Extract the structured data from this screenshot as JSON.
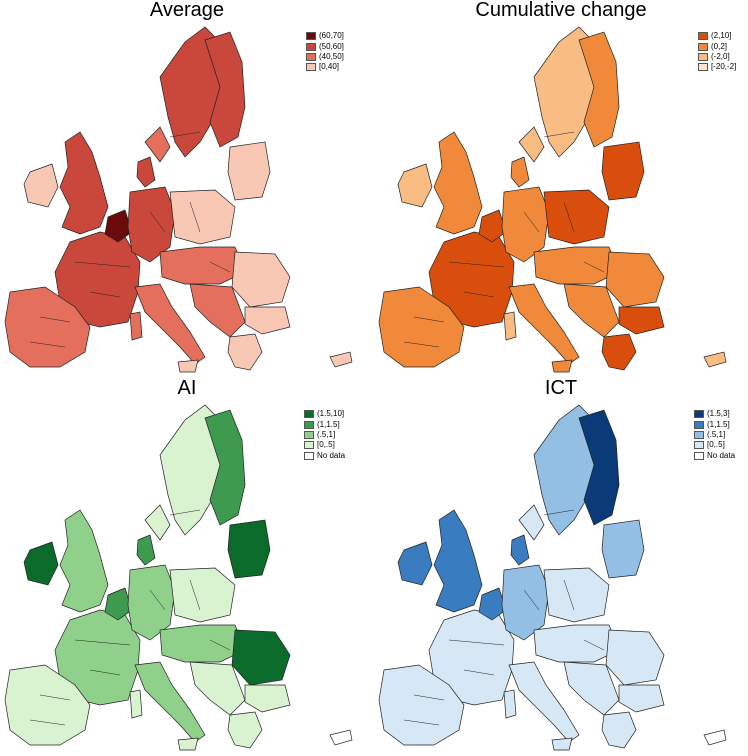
{
  "panels": [
    {
      "title": "Average",
      "legend": [
        {
          "label": "(60,70]",
          "color": "#6b0a0a"
        },
        {
          "label": "(50,60]",
          "color": "#c9473b"
        },
        {
          "label": "(40,50]",
          "color": "#e46f5d"
        },
        {
          "label": "[0,40]",
          "color": "#f8c8b5"
        }
      ],
      "base_color": "#c9473b"
    },
    {
      "title": "Cumulative change",
      "legend": [
        {
          "label": "(2,10]",
          "color": "#d94e0d"
        },
        {
          "label": "(0,2]",
          "color": "#f08a3a"
        },
        {
          "label": "(-2,0]",
          "color": "#f9bd84"
        },
        {
          "label": "[-20,-2]",
          "color": "#fde6d0"
        }
      ],
      "base_color": "#f08a3a"
    },
    {
      "title": "AI",
      "legend": [
        {
          "label": "(1.5,10]",
          "color": "#0b6b2b"
        },
        {
          "label": "(1,1.5]",
          "color": "#3d9a4f"
        },
        {
          "label": "(.5,1]",
          "color": "#8fd18a"
        },
        {
          "label": "[0,.5]",
          "color": "#d9f2d0"
        },
        {
          "label": "No data",
          "color": "#ffffff"
        }
      ],
      "base_color": "#d9f2d0"
    },
    {
      "title": "ICT",
      "legend": [
        {
          "label": "(1.5,3]",
          "color": "#0a3b78"
        },
        {
          "label": "(1,1.5]",
          "color": "#3a7cc0"
        },
        {
          "label": "(.5,1]",
          "color": "#92bfe3"
        },
        {
          "label": "[0,.5]",
          "color": "#d6e7f5"
        },
        {
          "label": "No data",
          "color": "#ffffff"
        }
      ],
      "base_color": "#d6e7f5"
    }
  ]
}
